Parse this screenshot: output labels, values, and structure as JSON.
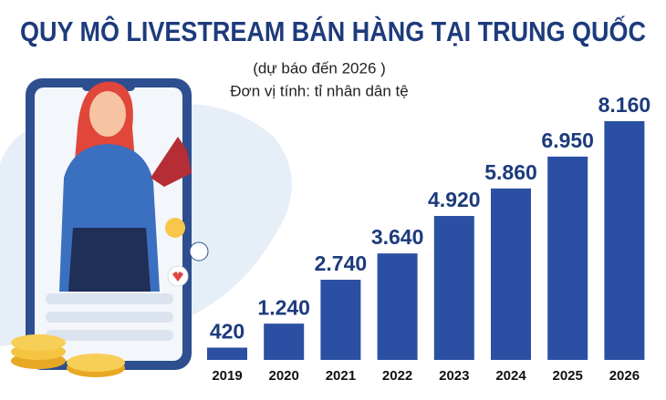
{
  "chart_data": {
    "type": "bar",
    "title": "QUY MÔ LIVESTREAM BÁN HÀNG TẠI TRUNG QUỐC",
    "subtitle": "(dự báo đến 2026 )",
    "unit_note": "Đơn vị tính: tỉ nhân dân tệ",
    "categories": [
      "2019",
      "2020",
      "2021",
      "2022",
      "2023",
      "2024",
      "2025",
      "2026"
    ],
    "values": [
      420,
      1240,
      2740,
      3640,
      4920,
      5860,
      6950,
      8160
    ],
    "value_labels": [
      "420",
      "1.240",
      "2.740",
      "3.640",
      "4.920",
      "5.860",
      "6.950",
      "8.160"
    ],
    "color": "#2b50a3"
  }
}
